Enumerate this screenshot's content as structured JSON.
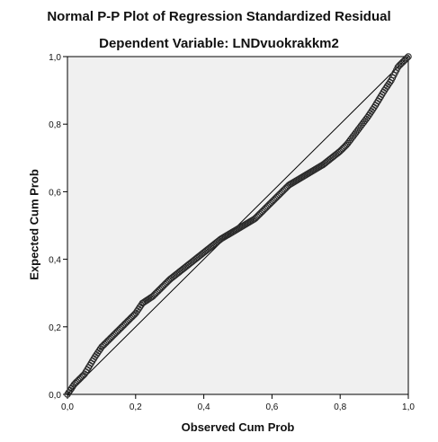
{
  "chart_data": {
    "type": "scatter",
    "title": "Normal P-P Plot of Regression Standardized Residual",
    "subtitle": "Dependent Variable: LNDvuokrakkm2",
    "xlabel": "Observed Cum Prob",
    "ylabel": "Expected Cum Prob",
    "xlim": [
      0.0,
      1.0
    ],
    "ylim": [
      0.0,
      1.0
    ],
    "xticks": [
      "0,0",
      "0,2",
      "0,4",
      "0,6",
      "0,8",
      "1,0"
    ],
    "yticks": [
      "0,0",
      "0,2",
      "0,4",
      "0,6",
      "0,8",
      "1,0"
    ],
    "grid": false,
    "reference_line": [
      [
        0.0,
        0.0
      ],
      [
        1.0,
        1.0
      ]
    ],
    "curve": [
      [
        0.0,
        0.0
      ],
      [
        0.02,
        0.03
      ],
      [
        0.05,
        0.06
      ],
      [
        0.08,
        0.11
      ],
      [
        0.1,
        0.14
      ],
      [
        0.12,
        0.16
      ],
      [
        0.15,
        0.19
      ],
      [
        0.18,
        0.22
      ],
      [
        0.2,
        0.24
      ],
      [
        0.22,
        0.27
      ],
      [
        0.25,
        0.29
      ],
      [
        0.28,
        0.32
      ],
      [
        0.3,
        0.34
      ],
      [
        0.35,
        0.38
      ],
      [
        0.4,
        0.42
      ],
      [
        0.45,
        0.46
      ],
      [
        0.5,
        0.49
      ],
      [
        0.55,
        0.52
      ],
      [
        0.58,
        0.55
      ],
      [
        0.6,
        0.57
      ],
      [
        0.65,
        0.62
      ],
      [
        0.7,
        0.65
      ],
      [
        0.75,
        0.68
      ],
      [
        0.8,
        0.72
      ],
      [
        0.82,
        0.74
      ],
      [
        0.85,
        0.78
      ],
      [
        0.88,
        0.82
      ],
      [
        0.9,
        0.85
      ],
      [
        0.93,
        0.9
      ],
      [
        0.95,
        0.93
      ],
      [
        0.97,
        0.97
      ],
      [
        1.0,
        1.0
      ]
    ],
    "point_count": 260,
    "colors": {
      "plot_bg": "#f0f0f0",
      "marker": "#2a2a2a",
      "line": "#000000"
    }
  }
}
